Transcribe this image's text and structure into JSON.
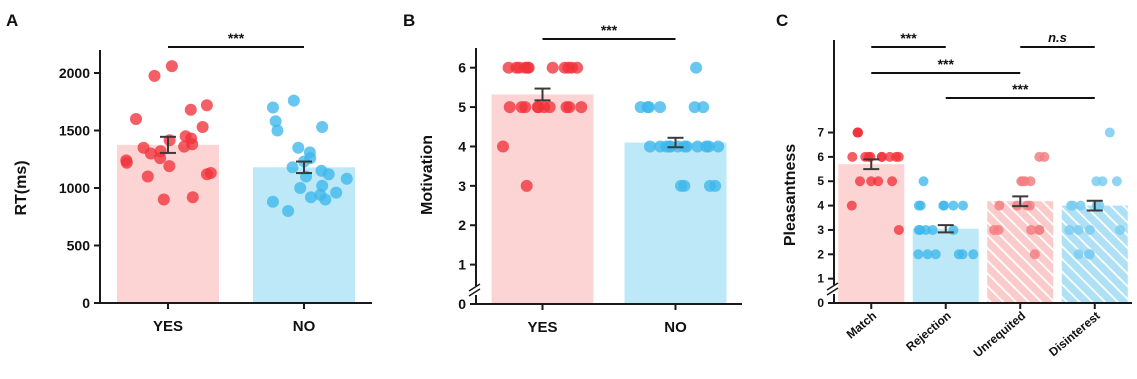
{
  "colors": {
    "red_bar": "#fdd4d4",
    "red_dot": "#f0323a",
    "red_dot_light": "#f27f83",
    "blue_bar": "#bde8f7",
    "blue_dot": "#3eb7ec",
    "blue_dot_light": "#7bcdf1",
    "axis": "#1a1a1a",
    "error": "#3a3a3a"
  },
  "chart_data": [
    {
      "panel_label": "A",
      "type": "bar",
      "ylabel": "RT(ms)",
      "xlabel": "",
      "ylim": [
        0,
        2200
      ],
      "yticks": [
        0,
        500,
        1000,
        1500,
        2000
      ],
      "categories": [
        "YES",
        "NO"
      ],
      "values": [
        1375,
        1180
      ],
      "sem": [
        70,
        50
      ],
      "bar_colors": [
        "red",
        "blue"
      ],
      "points": [
        [
          2060,
          1975,
          1720,
          1680,
          1600,
          1530,
          1450,
          1430,
          1415,
          1380,
          1360,
          1350,
          1320,
          1300,
          1260,
          1240,
          1220,
          1190,
          1130,
          1100,
          1120,
          920,
          900
        ],
        [
          1760,
          1700,
          1580,
          1530,
          1500,
          1350,
          1310,
          1260,
          1230,
          1180,
          1150,
          1120,
          1100,
          1080,
          1020,
          1000,
          960,
          940,
          920,
          900,
          880,
          800
        ]
      ],
      "significance": [
        {
          "from": 0,
          "to": 1,
          "label": "***",
          "italic": false
        }
      ]
    },
    {
      "panel_label": "B",
      "type": "bar",
      "ylabel": "Motivation",
      "xlabel": "",
      "ylim": [
        0,
        6.5
      ],
      "yticks": [
        0,
        1,
        2,
        3,
        4,
        5,
        6
      ],
      "axis_break": true,
      "categories": [
        "YES",
        "NO"
      ],
      "values": [
        5.32,
        4.1
      ],
      "sem": [
        0.15,
        0.12
      ],
      "bar_colors": [
        "red",
        "blue"
      ],
      "points": [
        [
          6,
          6,
          6,
          6,
          6,
          6,
          6,
          6,
          6,
          6,
          6,
          5,
          5,
          5,
          5,
          5,
          5,
          5,
          5,
          5,
          5,
          4,
          3
        ],
        [
          6,
          5,
          5,
          5,
          5,
          5,
          5,
          4,
          4,
          4,
          4,
          4,
          4,
          4,
          4,
          4,
          4,
          4,
          4,
          3,
          3,
          3,
          3
        ]
      ],
      "significance": [
        {
          "from": 0,
          "to": 1,
          "label": "***",
          "italic": false
        }
      ]
    },
    {
      "panel_label": "C",
      "type": "bar",
      "ylabel": "Pleasantness",
      "xlabel": "",
      "ylim": [
        0,
        10.8
      ],
      "yticks": [
        0,
        1,
        2,
        3,
        4,
        5,
        6,
        7
      ],
      "axis_break": true,
      "categories": [
        "Match",
        "Rejection",
        "Unrequited",
        "Disinterest"
      ],
      "values": [
        5.7,
        3.05,
        4.18,
        4.0
      ],
      "sem": [
        0.2,
        0.15,
        0.2,
        0.2
      ],
      "bar_colors": [
        "red",
        "blue",
        "red-hatched",
        "blue-hatched"
      ],
      "points": [
        [
          7,
          7,
          7,
          6,
          6,
          6,
          6,
          6,
          6,
          6,
          6,
          6,
          5,
          5,
          5,
          5,
          4,
          3
        ],
        [
          5,
          4,
          4,
          4,
          4,
          4,
          4,
          3,
          3,
          3,
          3,
          3,
          2,
          2,
          2,
          2,
          2,
          2
        ],
        [
          6,
          6,
          5,
          5,
          5,
          5,
          4,
          4,
          4,
          4,
          3,
          3,
          3,
          3,
          3,
          2
        ],
        [
          7,
          5,
          5,
          5,
          4,
          4,
          4,
          4,
          4,
          3,
          3,
          3,
          3,
          2,
          2,
          2
        ]
      ],
      "significance": [
        {
          "from": 0,
          "to": 1,
          "label": "***",
          "italic": false,
          "level": 3
        },
        {
          "from": 2,
          "to": 3,
          "label": "n.s",
          "italic": true,
          "level": 3
        },
        {
          "from": 0,
          "to": 2,
          "label": "***",
          "italic": false,
          "level": 2
        },
        {
          "from": 1,
          "to": 3,
          "label": "***",
          "italic": false,
          "level": 1
        }
      ]
    }
  ]
}
